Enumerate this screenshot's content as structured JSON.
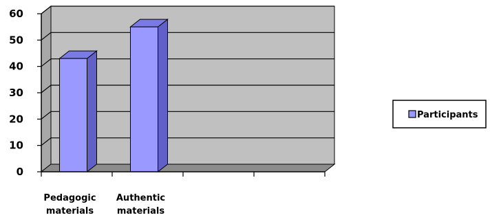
{
  "chart_data": {
    "type": "bar",
    "categories": [
      [
        "Pedagogic",
        "materials"
      ],
      [
        "Authentic",
        "materials"
      ],
      [
        "",
        ""
      ],
      [
        "",
        ""
      ]
    ],
    "series": [
      {
        "name": "Participants",
        "values": [
          43,
          55,
          null,
          null
        ],
        "color": "#9999ff"
      }
    ],
    "ylim": [
      0,
      60
    ],
    "yticks": [
      0,
      10,
      20,
      30,
      40,
      50,
      60
    ],
    "grid": true,
    "three_d": true,
    "legend_position": "right",
    "colors": {
      "bar_front": "#9999ff",
      "bar_side": "#6060c8",
      "bar_top": "#7a7ae6",
      "wall": "#c0c0c0",
      "floor": "#8c8c8c",
      "grid": "#000000"
    }
  }
}
